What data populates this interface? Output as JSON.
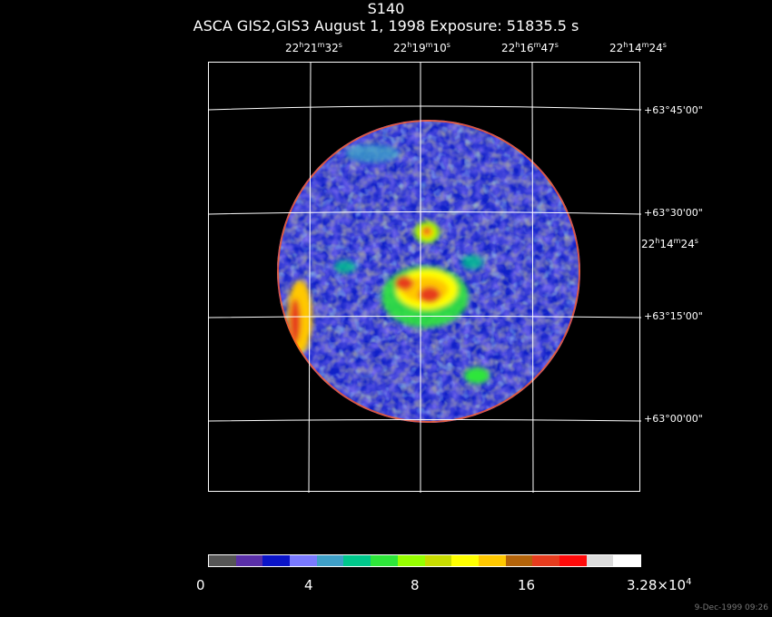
{
  "title": "S140",
  "subtitle": "ASCA GIS2,GIS3 August 1, 1998 Exposure: 51835.5 s",
  "ra_labels": [
    {
      "h": "22",
      "m": "21",
      "s": "32"
    },
    {
      "h": "22",
      "m": "19",
      "s": "10"
    },
    {
      "h": "22",
      "m": "16",
      "s": "47"
    },
    {
      "h": "22",
      "m": "14",
      "s": "24"
    }
  ],
  "ra_side_label": {
    "h": "22",
    "m": "14",
    "s": "24"
  },
  "dec_labels": [
    "+63°45'00\"",
    "+63°30'00\"",
    "+63°15'00\"",
    "+63°00'00\""
  ],
  "colorbar": {
    "colors": [
      "#555555",
      "#5a2fa8",
      "#0a14c8",
      "#7a7aff",
      "#3fa0c8",
      "#00c88c",
      "#2ee63a",
      "#96ff00",
      "#c8dc00",
      "#ffff00",
      "#ffc800",
      "#b4640a",
      "#e63c1e",
      "#ff0a0a",
      "#dcdcdc",
      "#ffffff"
    ],
    "labels": [
      "0",
      "4",
      "8",
      "16"
    ],
    "max_label": "3.28×10",
    "max_exp": "4"
  },
  "footer": "9-Dec-1999 09:26"
}
